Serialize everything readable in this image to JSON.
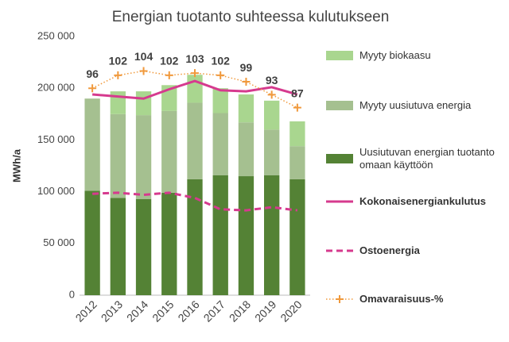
{
  "chart_data": {
    "type": "bar",
    "stacked": true,
    "title": "Energian tuotanto suhteessa kulutukseen",
    "ylabel": "MWh/a",
    "categories": [
      "2012",
      "2013",
      "2014",
      "2015",
      "2016",
      "2017",
      "2018",
      "2019",
      "2020"
    ],
    "ylim": [
      0,
      250000
    ],
    "yticks": [
      0,
      {
        "value": 50000,
        "label": "50 000"
      },
      {
        "value": 100000,
        "label": "100 000"
      },
      {
        "value": 150000,
        "label": "150 000"
      },
      {
        "value": 200000,
        "label": "200 000"
      },
      {
        "value": 250000,
        "label": "250 000"
      }
    ],
    "y2lim": [
      0,
      120
    ],
    "series": [
      {
        "name": "Uusiutuvan energian tuotanto omaan käyttöön",
        "type": "bar",
        "color": "#548235",
        "values": [
          101000,
          94000,
          93000,
          99000,
          112000,
          116000,
          115000,
          116000,
          112000
        ]
      },
      {
        "name": "Myyty uusiutuva energia",
        "type": "bar",
        "color": "#a5c090",
        "values": [
          89000,
          81000,
          81000,
          79000,
          74000,
          60000,
          52000,
          44000,
          32000
        ]
      },
      {
        "name": "Myyty biokaasu",
        "type": "bar",
        "color": "#a9d68f",
        "values": [
          0,
          22000,
          23000,
          25000,
          27000,
          24000,
          27000,
          28000,
          24000
        ]
      },
      {
        "name": "Kokonaisenergiankulutus",
        "type": "line",
        "color": "#d63a8e",
        "values": [
          194000,
          192000,
          190000,
          199000,
          207000,
          198000,
          197000,
          201000,
          194000
        ]
      },
      {
        "name": "Ostoenergia",
        "type": "line",
        "style": "dashed",
        "color": "#d63a8e",
        "values": [
          98000,
          99000,
          97000,
          99000,
          94000,
          83000,
          82000,
          85000,
          82000
        ]
      },
      {
        "name": "Omavaraisuus-%",
        "type": "line",
        "style": "dotted",
        "marker": "plus",
        "axis": "y2",
        "data_labels": true,
        "color": "#f0993c",
        "values": [
          96,
          102,
          104,
          102,
          103,
          102,
          99,
          93,
          87
        ]
      }
    ]
  }
}
